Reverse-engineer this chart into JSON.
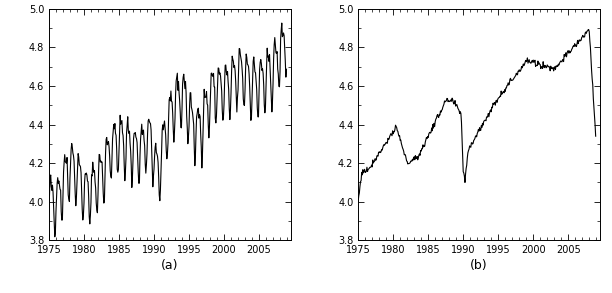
{
  "ylim": [
    3.8,
    5.0
  ],
  "xlim": [
    1975,
    2009.5
  ],
  "yticks_major": [
    3.8,
    4.0,
    4.2,
    4.4,
    4.6,
    4.8,
    5.0
  ],
  "xticks_major": [
    1975,
    1980,
    1985,
    1990,
    1995,
    2000,
    2005
  ],
  "xticks_minor": [
    1976,
    1977,
    1978,
    1979,
    1981,
    1982,
    1983,
    1984,
    1986,
    1987,
    1988,
    1989,
    1991,
    1992,
    1993,
    1994,
    1996,
    1997,
    1998,
    1999,
    2001,
    2002,
    2003,
    2004,
    2006,
    2007,
    2008,
    2009
  ],
  "yticks_minor": [
    3.9,
    4.1,
    4.3,
    4.5,
    4.7,
    4.9
  ],
  "label_a": "(a)",
  "label_b": "(b)",
  "line_color": "#000000",
  "line_width": 0.8,
  "bg_color": "#ffffff",
  "tick_fontsize": 7,
  "label_fontsize": 9
}
